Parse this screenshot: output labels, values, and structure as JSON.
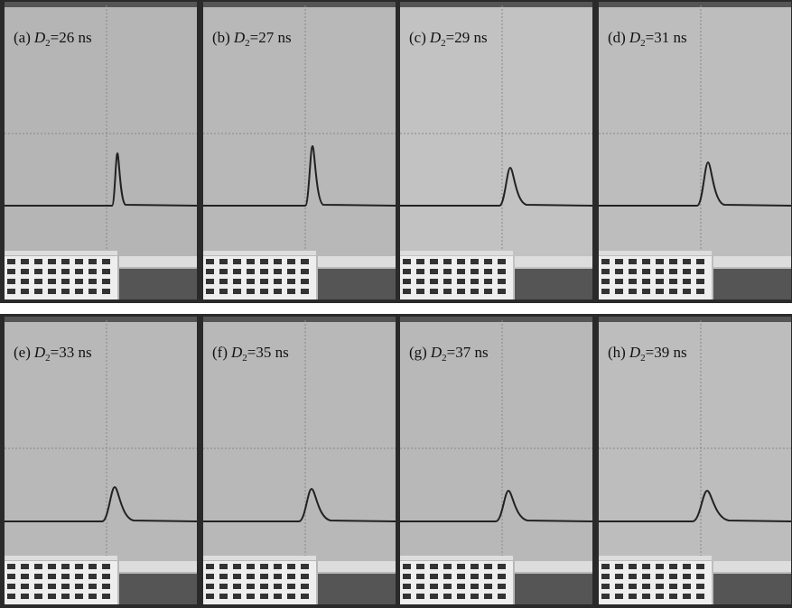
{
  "panels": [
    {
      "letter": "(a)",
      "variable": "D",
      "subscript": "2",
      "value": "=26 ns"
    },
    {
      "letter": "(b)",
      "variable": "D",
      "subscript": "2",
      "value": "=27 ns"
    },
    {
      "letter": "(c)",
      "variable": "D",
      "subscript": "2",
      "value": "=29 ns"
    },
    {
      "letter": "(d)",
      "variable": "D",
      "subscript": "2",
      "value": "=31 ns"
    },
    {
      "letter": "(e)",
      "variable": "D",
      "subscript": "2",
      "value": "=33 ns"
    },
    {
      "letter": "(f)",
      "variable": "D",
      "subscript": "2",
      "value": "=35 ns"
    },
    {
      "letter": "(g)",
      "variable": "D",
      "subscript": "2",
      "value": "=37 ns"
    },
    {
      "letter": "(h)",
      "variable": "D",
      "subscript": "2",
      "value": "=39 ns"
    }
  ]
}
